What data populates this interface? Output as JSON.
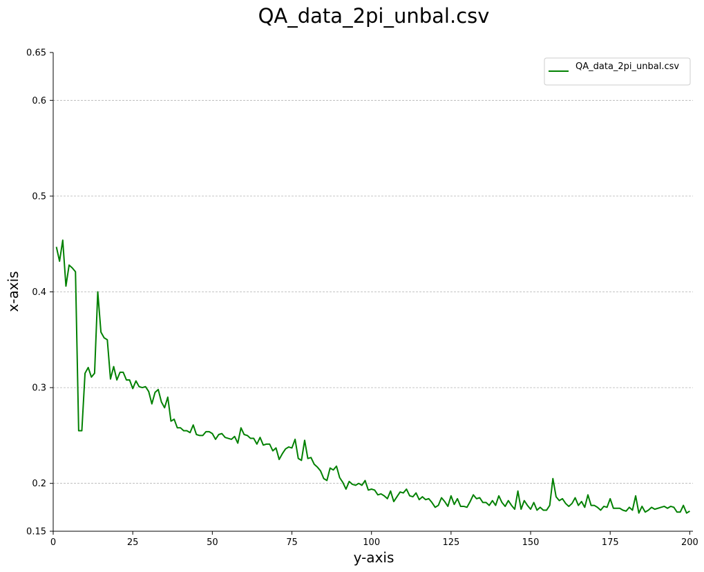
{
  "chart_data": {
    "type": "line",
    "title": "QA_data_2pi_unbal.csv",
    "xlabel": "y-axis",
    "ylabel": "x-axis",
    "xlim": [
      0,
      201
    ],
    "ylim": [
      0.15,
      0.65
    ],
    "grid": "horizontal dashed",
    "legend_position": "top-right",
    "x_ticks": [
      0,
      25,
      50,
      75,
      100,
      125,
      150,
      175,
      200
    ],
    "y_ticks": [
      0.15,
      0.2,
      0.3,
      0.4,
      0.5,
      0.6,
      0.65
    ],
    "y_tick_labels": [
      "0.15",
      "0.2",
      "0.3",
      "0.4",
      "0.5",
      "0.6",
      "0.65"
    ],
    "series": [
      {
        "name": "QA_data_2pi_unbal.csv",
        "color": "#008000",
        "x": [
          1,
          2,
          3,
          4,
          5,
          6,
          7,
          8,
          9,
          10,
          11,
          12,
          13,
          14,
          15,
          16,
          17,
          18,
          19,
          20,
          21,
          22,
          23,
          24,
          25,
          26,
          27,
          28,
          29,
          30,
          31,
          32,
          33,
          34,
          35,
          36,
          37,
          38,
          39,
          40,
          41,
          42,
          43,
          44,
          45,
          46,
          47,
          48,
          49,
          50,
          51,
          52,
          53,
          54,
          55,
          56,
          57,
          58,
          59,
          60,
          61,
          62,
          63,
          64,
          65,
          66,
          67,
          68,
          69,
          70,
          71,
          72,
          73,
          74,
          75,
          76,
          77,
          78,
          79,
          80,
          81,
          82,
          83,
          84,
          85,
          86,
          87,
          88,
          89,
          90,
          91,
          92,
          93,
          94,
          95,
          96,
          97,
          98,
          99,
          100,
          101,
          102,
          103,
          104,
          105,
          106,
          107,
          108,
          109,
          110,
          111,
          112,
          113,
          114,
          115,
          116,
          117,
          118,
          119,
          120,
          121,
          122,
          123,
          124,
          125,
          126,
          127,
          128,
          129,
          130,
          131,
          132,
          133,
          134,
          135,
          136,
          137,
          138,
          139,
          140,
          141,
          142,
          143,
          144,
          145,
          146,
          147,
          148,
          149,
          150,
          151,
          152,
          153,
          154,
          155,
          156,
          157,
          158,
          159,
          160,
          161,
          162,
          163,
          164,
          165,
          166,
          167,
          168,
          169,
          170,
          171,
          172,
          173,
          174,
          175,
          176,
          177,
          178,
          179,
          180,
          181,
          182,
          183,
          184,
          185,
          186,
          187,
          188,
          189,
          190,
          191,
          192,
          193,
          194,
          195,
          196,
          197,
          198,
          199,
          200
        ],
        "values": [
          0.447,
          0.432,
          0.454,
          0.406,
          0.428,
          0.425,
          0.421,
          0.255,
          0.255,
          0.315,
          0.321,
          0.311,
          0.315,
          0.4,
          0.358,
          0.352,
          0.35,
          0.309,
          0.322,
          0.308,
          0.316,
          0.316,
          0.308,
          0.308,
          0.299,
          0.307,
          0.301,
          0.3,
          0.301,
          0.296,
          0.283,
          0.295,
          0.298,
          0.285,
          0.279,
          0.29,
          0.265,
          0.267,
          0.258,
          0.258,
          0.255,
          0.255,
          0.253,
          0.261,
          0.251,
          0.25,
          0.25,
          0.254,
          0.254,
          0.252,
          0.246,
          0.251,
          0.252,
          0.248,
          0.247,
          0.246,
          0.249,
          0.242,
          0.258,
          0.251,
          0.25,
          0.247,
          0.247,
          0.241,
          0.248,
          0.24,
          0.241,
          0.241,
          0.234,
          0.237,
          0.225,
          0.231,
          0.236,
          0.238,
          0.237,
          0.246,
          0.226,
          0.224,
          0.245,
          0.226,
          0.227,
          0.22,
          0.217,
          0.213,
          0.205,
          0.203,
          0.216,
          0.214,
          0.218,
          0.206,
          0.201,
          0.194,
          0.202,
          0.199,
          0.198,
          0.2,
          0.198,
          0.203,
          0.193,
          0.194,
          0.193,
          0.188,
          0.189,
          0.187,
          0.184,
          0.192,
          0.181,
          0.186,
          0.191,
          0.19,
          0.194,
          0.187,
          0.186,
          0.19,
          0.183,
          0.186,
          0.183,
          0.184,
          0.18,
          0.175,
          0.177,
          0.185,
          0.181,
          0.176,
          0.187,
          0.178,
          0.184,
          0.176,
          0.176,
          0.175,
          0.181,
          0.188,
          0.184,
          0.185,
          0.18,
          0.18,
          0.177,
          0.182,
          0.177,
          0.187,
          0.18,
          0.176,
          0.182,
          0.177,
          0.173,
          0.192,
          0.173,
          0.182,
          0.177,
          0.173,
          0.18,
          0.172,
          0.175,
          0.172,
          0.172,
          0.177,
          0.205,
          0.186,
          0.182,
          0.184,
          0.179,
          0.176,
          0.179,
          0.185,
          0.177,
          0.181,
          0.175,
          0.188,
          0.177,
          0.177,
          0.175,
          0.172,
          0.176,
          0.175,
          0.184,
          0.174,
          0.174,
          0.174,
          0.172,
          0.171,
          0.175,
          0.172,
          0.187,
          0.169,
          0.176,
          0.17,
          0.172,
          0.175,
          0.173,
          0.174,
          0.175,
          0.176,
          0.174,
          0.176,
          0.175,
          0.17,
          0.17,
          0.177,
          0.169,
          0.171
        ]
      }
    ]
  }
}
